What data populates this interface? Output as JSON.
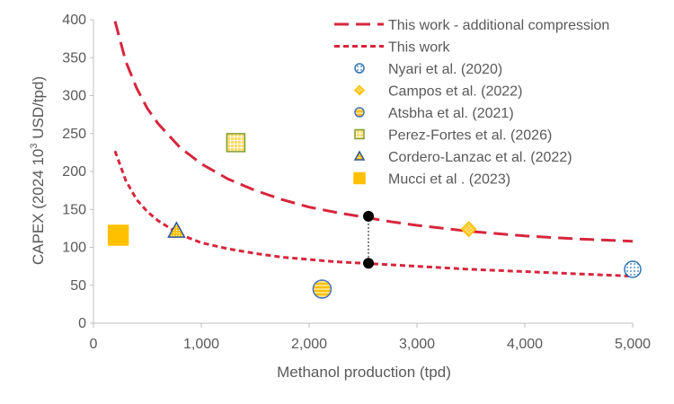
{
  "chart_data": {
    "type": "scatter",
    "title": "",
    "xlabel": "Methanol production (tpd)",
    "ylabel_main": "CAPEX (2024 10",
    "ylabel_sup": "3",
    "ylabel_tail": " USD/tpd)",
    "xlim": [
      0,
      5000
    ],
    "ylim": [
      0,
      400
    ],
    "x_ticks": [
      0,
      1000,
      2000,
      3000,
      4000,
      5000
    ],
    "x_tick_labels": [
      "0",
      "1,000",
      "2,000",
      "3,000",
      "4,000",
      "5,000"
    ],
    "y_ticks": [
      0,
      50,
      100,
      150,
      200,
      250,
      300,
      350,
      400
    ],
    "y_tick_labels": [
      "0",
      "50",
      "100",
      "150",
      "200",
      "250",
      "300",
      "350",
      "400"
    ],
    "grid": false,
    "legend_position": "top-right",
    "curves": [
      {
        "name": "This work - additional compression",
        "color": "#d7263d",
        "style": "long-dash",
        "x": [
          200,
          300,
          400,
          500,
          600,
          800,
          1000,
          1250,
          1500,
          1750,
          2000,
          2250,
          2500,
          2750,
          3000,
          3500,
          4000,
          4500,
          5000
        ],
        "y": [
          398,
          345,
          310,
          283,
          263,
          232,
          210,
          190,
          175,
          163,
          153,
          146,
          140,
          134,
          129,
          121,
          115,
          111,
          108
        ]
      },
      {
        "name": "This work",
        "color": "#d7263d",
        "style": "short-dash",
        "x": [
          200,
          300,
          400,
          500,
          600,
          800,
          1000,
          1250,
          1500,
          1750,
          2000,
          2250,
          2500,
          2750,
          3000,
          3500,
          4000,
          4500,
          5000
        ],
        "y": [
          227,
          188,
          163,
          147,
          135,
          117,
          106,
          98,
          92,
          87,
          84,
          81,
          79,
          77,
          75,
          71,
          68,
          65,
          62
        ]
      }
    ],
    "points": [
      {
        "name": "Nyari et al. (2020)",
        "x": 5000,
        "y": 71,
        "marker": "circle",
        "pattern": "dots",
        "fill": "#9dc3e6",
        "stroke": "#2e75b6"
      },
      {
        "name": "Campos et al. (2022)",
        "x": 3480,
        "y": 124,
        "marker": "diamond",
        "pattern": "crosshatch",
        "fill": "#ffe699",
        "stroke": "#ffc000"
      },
      {
        "name": "Atsbha et al. (2021)",
        "x": 2120,
        "y": 45,
        "marker": "circle",
        "pattern": "hlines",
        "fill": "#ffc000",
        "stroke": "#4472c4"
      },
      {
        "name": "Perez-Fortes et al. (2026)",
        "x": 1320,
        "y": 238,
        "marker": "square",
        "pattern": "grid",
        "fill": "#ffd966",
        "stroke": "#7f9f30"
      },
      {
        "name": "Cordero-Lanzac et al. (2022)",
        "x": 770,
        "y": 122,
        "marker": "triangle",
        "pattern": "dots",
        "fill": "#ffc000",
        "stroke": "#2f5597"
      },
      {
        "name": "Mucci et al . (2023)",
        "x": 230,
        "y": 116,
        "marker": "square",
        "pattern": "solid",
        "fill": "#ffc000",
        "stroke": "#ffc000"
      }
    ],
    "connector": {
      "x": 2550,
      "y_top": 141,
      "y_bottom": 79,
      "color": "#000000"
    }
  }
}
